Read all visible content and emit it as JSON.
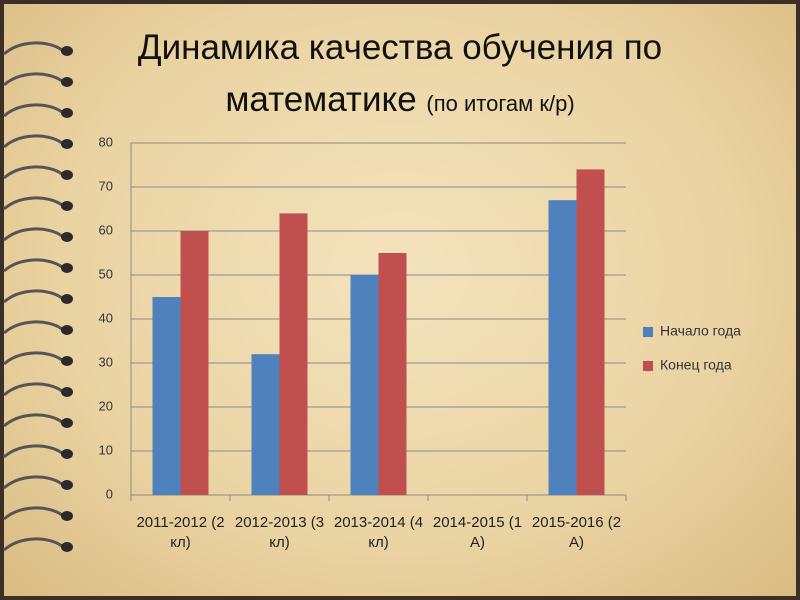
{
  "chart_data": {
    "type": "bar",
    "title": "Динамика качества обучения по математике",
    "subtitle": "(по итогам к/р)",
    "categories": [
      "2011-2012 (2 кл)",
      "2012-2013 (3 кл)",
      "2013-2014 (4 кл)",
      "2014-2015 (1 А)",
      "2015-2016 (2 А)"
    ],
    "series": [
      {
        "name": "Начало года",
        "color": "#4f81bd",
        "values": [
          45,
          32,
          50,
          null,
          67
        ]
      },
      {
        "name": "Конец года",
        "color": "#c0504d",
        "values": [
          60,
          64,
          55,
          null,
          74
        ]
      }
    ],
    "ylim": [
      0,
      80
    ],
    "yticks": [
      0,
      10,
      20,
      30,
      40,
      50,
      60,
      70,
      80
    ],
    "grid": true,
    "legend": "right"
  }
}
